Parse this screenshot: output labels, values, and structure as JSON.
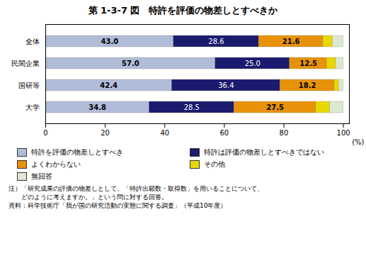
{
  "chart_data": {
    "type": "bar",
    "orientation": "horizontal",
    "stacked": true,
    "title": "第 1-3-7 図　特許を評価の物差しとすべきか",
    "xlabel": "(%)",
    "categories": [
      "全体",
      "民間企業",
      "国研等",
      "大学"
    ],
    "series": [
      {
        "name": "特許を評価の物差しとすべき",
        "color": "#b0bcd8",
        "values": [
          43.0,
          57.0,
          42.4,
          34.8
        ],
        "data_labels": true,
        "value_labels": [
          "43.0",
          "57.0",
          "42.4",
          "34.8"
        ]
      },
      {
        "name": "特許は評価の物差しとすべきではない",
        "color": "#1a1a6e",
        "values": [
          28.6,
          25.0,
          36.4,
          28.5
        ],
        "data_labels": true,
        "value_labels": [
          "28.6",
          "25.0",
          "36.4",
          "28.5"
        ]
      },
      {
        "name": "よくわからない",
        "color": "#e8920a",
        "values": [
          21.6,
          12.5,
          18.2,
          27.5
        ],
        "data_labels": true,
        "value_labels": [
          "21.6",
          "12.5",
          "18.2",
          "27.5"
        ]
      },
      {
        "name": "その他",
        "color": "#e8d800",
        "values": [
          3.2,
          3.0,
          1.5,
          4.7
        ]
      },
      {
        "name": "無回答",
        "color": "#dde8d0",
        "values": [
          3.6,
          2.5,
          1.5,
          4.5
        ]
      }
    ],
    "xlim": [
      0,
      102
    ],
    "xticks": [
      0,
      20,
      40,
      60,
      80,
      100
    ],
    "notes": [
      "注）「研究成果の評価の物差しとして、「特許出願数・取得数」を用いることについて、",
      "　　どのように考えますか。」という問に対する回答。",
      "資料：科学技術庁「我が国の研究活動の実態に関する調査」（平成10年度）"
    ]
  }
}
